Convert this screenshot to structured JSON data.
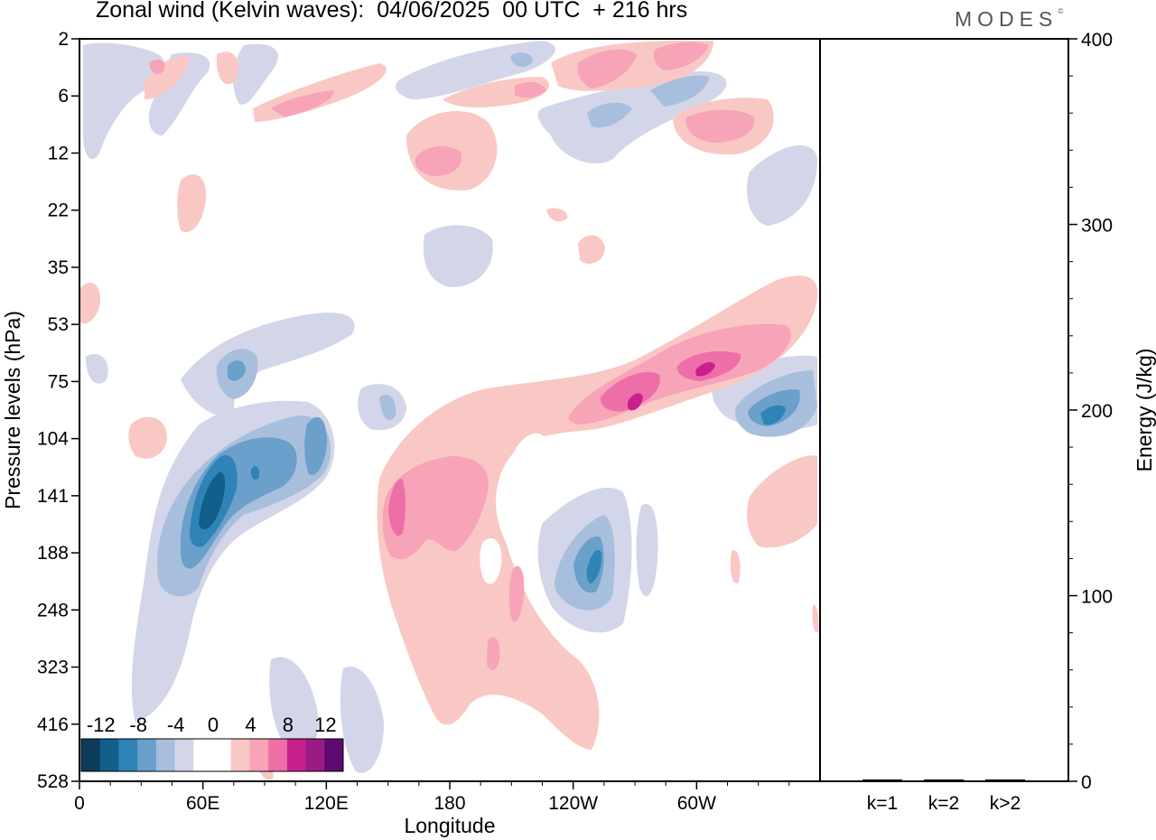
{
  "title": "Zonal wind (Kelvin waves):  04/06/2025  00 UTC  + 216 hrs",
  "brand": "MODES",
  "brand_mark": "©",
  "chart_data": [
    {
      "type": "heatmap",
      "title": "Zonal wind (Kelvin waves):  04/06/2025  00 UTC  + 216 hrs",
      "xlabel": "Longitude",
      "ylabel": "Pressure levels (hPa)",
      "x_tick_labels": [
        "0",
        "60E",
        "120E",
        "180",
        "120W",
        "60W"
      ],
      "x_ticks_deg": [
        0,
        60,
        120,
        180,
        240,
        300
      ],
      "xlim_deg": [
        0,
        360
      ],
      "y_tick_labels": [
        "2",
        "6",
        "12",
        "22",
        "35",
        "53",
        "75",
        "104",
        "141",
        "188",
        "248",
        "323",
        "416",
        "528"
      ],
      "yscale": "log",
      "ylim": [
        2,
        528
      ],
      "colorbar": {
        "tick_labels": [
          "-12",
          "-8",
          "-4",
          "0",
          "4",
          "8",
          "12"
        ],
        "colors": [
          "#0c3b5c",
          "#125f8a",
          "#2f83b6",
          "#6aa0ca",
          "#a8bedd",
          "#d3d6e8",
          "#ffffff",
          "#ffffff",
          "#f9c8c4",
          "#f7a3b8",
          "#ee6fa7",
          "#c9208d",
          "#9b1b84",
          "#5e0a6f"
        ]
      },
      "features": [
        {
          "kind": "negative",
          "lon": 58,
          "p": 141,
          "magnitude": 12
        },
        {
          "kind": "negative",
          "lon": 75,
          "p": 75,
          "magnitude": 6
        },
        {
          "kind": "negative",
          "lon": 113,
          "p": 110,
          "magnitude": 6
        },
        {
          "kind": "negative",
          "lon": 250,
          "p": 180,
          "magnitude": 8
        },
        {
          "kind": "negative",
          "lon": 335,
          "p": 100,
          "magnitude": 8
        },
        {
          "kind": "negative",
          "lon": 194,
          "p": 22,
          "magnitude": 2
        },
        {
          "kind": "positive",
          "lon": 160,
          "p": 141,
          "magnitude": 8
        },
        {
          "kind": "positive",
          "lon": 290,
          "p": 75,
          "magnitude": 8
        },
        {
          "kind": "positive",
          "lon": 175,
          "p": 12,
          "magnitude": 6
        },
        {
          "kind": "positive",
          "lon": 310,
          "p": 8,
          "magnitude": 6
        },
        {
          "kind": "positive",
          "lon": 280,
          "p": 3,
          "magnitude": 6
        },
        {
          "kind": "positive",
          "lon": 345,
          "p": 160,
          "magnitude": 4
        }
      ]
    },
    {
      "type": "bar",
      "categories": [
        "k=1",
        "k=2",
        "k>2"
      ],
      "values": [
        0.5,
        0.5,
        0.5
      ],
      "ylabel": "Energy (J/kg)",
      "ylim": [
        0,
        400
      ],
      "y_tick_labels": [
        "0",
        "100",
        "200",
        "300",
        "400"
      ],
      "y_ticks": [
        0,
        100,
        200,
        300,
        400
      ]
    }
  ]
}
